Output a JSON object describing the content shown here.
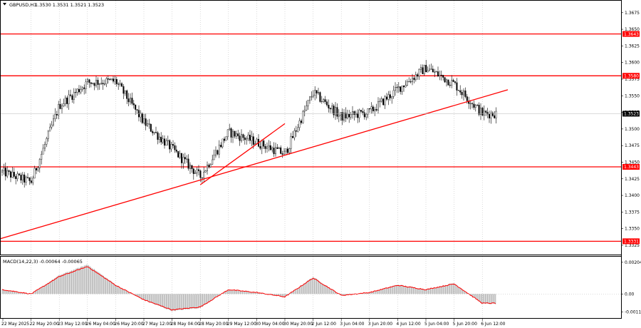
{
  "header": {
    "symbol": "GBPUSD,H1",
    "ohlc": "1.3530 1.3531 1.3521 1.3523",
    "dropdown_icon": "triangle-down-icon"
  },
  "indicator": {
    "name": "MACD(14,22,3) -0.00064 -0.00065"
  },
  "colors": {
    "level_line": "#ff0000",
    "trend_line": "#ff0000",
    "candle": "#000000",
    "macd_hist": "#a6a6a6",
    "macd_signal": "#ff0000",
    "grid": "#b4b4b4",
    "current_price_tag": "#000000"
  },
  "price_axis": {
    "ticks": [
      "1.3675",
      "1.3650",
      "1.3625",
      "1.3600",
      "1.3575",
      "1.3550",
      "1.3525",
      "1.3500",
      "1.3475",
      "1.3450",
      "1.3425",
      "1.3400",
      "1.3375",
      "1.3350",
      "1.3325"
    ],
    "tagged_levels": [
      "1.3643",
      "1.3580",
      "1.3443",
      "1.3331"
    ],
    "current_price": "1.3523"
  },
  "macd_axis": {
    "ticks": [
      "0.00204",
      "0.00",
      "-0.00116"
    ]
  },
  "time_axis": {
    "labels": [
      "22 May 2025",
      "22 May 20:00",
      "23 May 12:00",
      "26 May 04:00",
      "26 May 20:00",
      "27 May 12:00",
      "28 May 04:00",
      "28 May 20:00",
      "29 May 12:00",
      "30 May 04:00",
      "30 May 20:00",
      "2 Jun 12:00",
      "3 Jun 04:00",
      "3 Jun 20:00",
      "4 Jun 12:00",
      "5 Jun 04:00",
      "5 Jun 20:00",
      "6 Jun 12:00"
    ]
  },
  "chart_data": {
    "type": "candlestick",
    "horizontal_levels": [
      1.3643,
      1.358,
      1.3443,
      1.3331
    ],
    "trend_lines": [
      {
        "from": {
          "time": "22 May 2025",
          "price": 1.3335
        },
        "to": {
          "time": "6 Jun 12:00",
          "price": 1.3559
        }
      },
      {
        "from": {
          "time": "28 May 20:00",
          "price": 1.3416
        },
        "to": {
          "time": "30 May 20:00",
          "price": 1.3508
        }
      }
    ],
    "close_path": [
      {
        "time": "22 May 2025",
        "price": 1.3435
      },
      {
        "time": "22 May 20:00",
        "price": 1.342
      },
      {
        "time": "23 May 12:00",
        "price": 1.3535
      },
      {
        "time": "26 May 04:00",
        "price": 1.357
      },
      {
        "time": "26 May 20:00",
        "price": 1.3572
      },
      {
        "time": "27 May 12:00",
        "price": 1.351
      },
      {
        "time": "28 May 04:00",
        "price": 1.347
      },
      {
        "time": "28 May 20:00",
        "price": 1.3428
      },
      {
        "time": "29 May 12:00",
        "price": 1.3495
      },
      {
        "time": "30 May 04:00",
        "price": 1.348
      },
      {
        "time": "30 May 20:00",
        "price": 1.3462
      },
      {
        "time": "2 Jun 12:00",
        "price": 1.3555
      },
      {
        "time": "3 Jun 04:00",
        "price": 1.3518
      },
      {
        "time": "3 Jun 20:00",
        "price": 1.3525
      },
      {
        "time": "4 Jun 12:00",
        "price": 1.356
      },
      {
        "time": "5 Jun 04:00",
        "price": 1.3592
      },
      {
        "time": "5 Jun 20:00",
        "price": 1.3568
      },
      {
        "time": "6 Jun 12:00",
        "price": 1.3523
      }
    ],
    "macd_path": [
      {
        "time": "22 May 2025",
        "value": 0.0003
      },
      {
        "time": "22 May 20:00",
        "value": 0.0
      },
      {
        "time": "23 May 12:00",
        "value": 0.0012
      },
      {
        "time": "26 May 04:00",
        "value": 0.0019
      },
      {
        "time": "26 May 20:00",
        "value": 0.0006
      },
      {
        "time": "27 May 12:00",
        "value": -0.0004
      },
      {
        "time": "28 May 04:00",
        "value": -0.0011
      },
      {
        "time": "28 May 20:00",
        "value": -0.0009
      },
      {
        "time": "29 May 12:00",
        "value": 0.0003
      },
      {
        "time": "30 May 04:00",
        "value": 0.0001
      },
      {
        "time": "30 May 20:00",
        "value": -0.0002
      },
      {
        "time": "2 Jun 12:00",
        "value": 0.0011
      },
      {
        "time": "3 Jun 04:00",
        "value": -0.0001
      },
      {
        "time": "3 Jun 20:00",
        "value": 0.0001
      },
      {
        "time": "4 Jun 12:00",
        "value": 0.0006
      },
      {
        "time": "5 Jun 04:00",
        "value": 0.0003
      },
      {
        "time": "5 Jun 20:00",
        "value": 0.0007
      },
      {
        "time": "6 Jun 12:00",
        "value": -0.00064
      }
    ]
  }
}
